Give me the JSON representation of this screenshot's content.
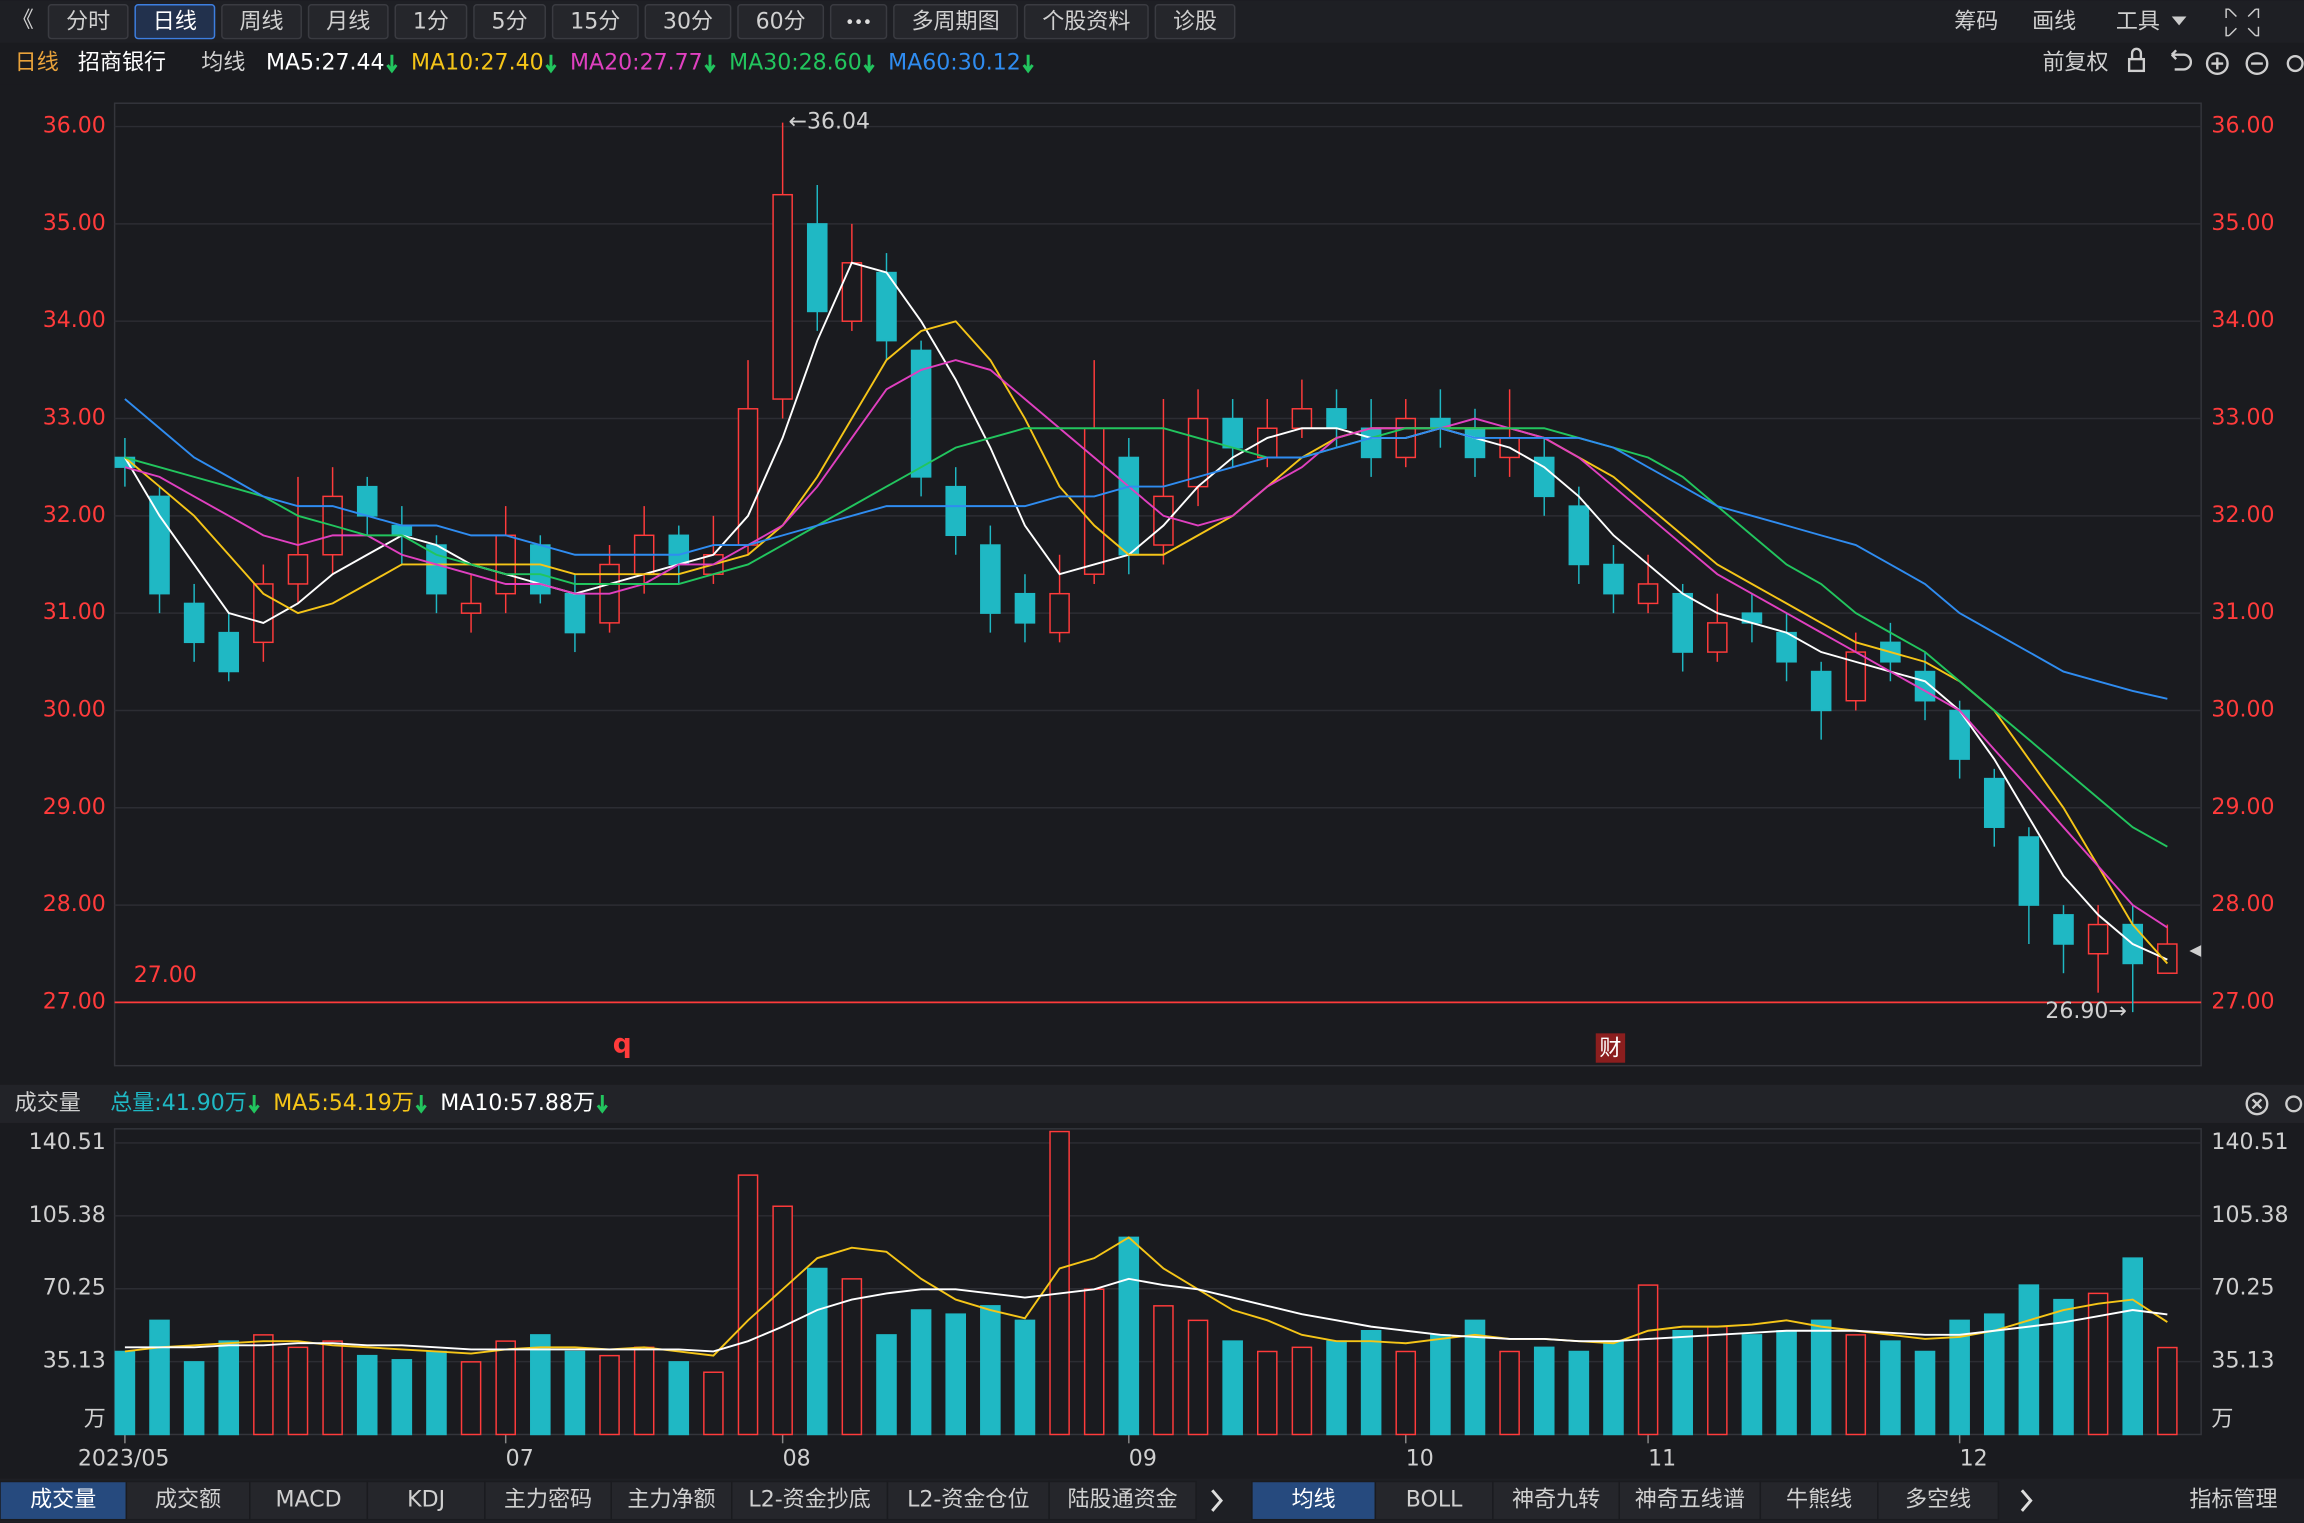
{
  "toolbar": {
    "nav": "《",
    "left": [
      "分时",
      "日线",
      "周线",
      "月线",
      "1分",
      "5分",
      "15分",
      "30分",
      "60分"
    ],
    "more": [
      "多周期图",
      "个股资料",
      "诊股"
    ],
    "right": [
      "筹码",
      "画线",
      "工具"
    ]
  },
  "header": {
    "period": "日线",
    "stock": "招商银行",
    "ma_title": "均线",
    "adjust": "前复权"
  },
  "markers": [
    "q",
    "财"
  ],
  "volume_header": {
    "title": "成交量",
    "total": "总量:41.90万"
  },
  "tabs_left": [
    "成交量",
    "成交额",
    "MACD",
    "KDJ",
    "主力密码",
    "主力净额",
    "L2-资金抄底",
    "L2-资金仓位",
    "陆股通资金"
  ],
  "tabs_right": [
    "均线",
    "BOLL",
    "神奇九转",
    "神奇五线谱",
    "牛熊线",
    "多空线"
  ],
  "tab_manage": "指标管理",
  "chart_data": [
    {
      "type": "candlestick",
      "categories": [
        "2023/05",
        null,
        null,
        null,
        null,
        null,
        null,
        null,
        null,
        null,
        null,
        "07",
        null,
        null,
        null,
        null,
        null,
        null,
        null,
        "08",
        null,
        null,
        null,
        null,
        null,
        null,
        null,
        null,
        null,
        "09",
        null,
        null,
        null,
        null,
        null,
        null,
        null,
        "10",
        null,
        null,
        null,
        null,
        null,
        null,
        "11",
        null,
        null,
        null,
        null,
        null,
        null,
        null,
        null,
        "12",
        null,
        null,
        null,
        null,
        null,
        null
      ],
      "open": [
        32.6,
        32.2,
        31.1,
        30.8,
        30.7,
        31.3,
        31.6,
        32.3,
        31.9,
        31.7,
        31.0,
        31.2,
        31.7,
        31.2,
        30.9,
        31.4,
        31.8,
        31.4,
        31.7,
        33.2,
        35.0,
        34.0,
        34.5,
        33.7,
        32.3,
        31.7,
        31.2,
        30.8,
        31.4,
        32.6,
        31.7,
        32.3,
        33.0,
        32.6,
        32.9,
        33.1,
        32.9,
        32.6,
        33.0,
        32.9,
        32.6,
        32.6,
        32.1,
        31.5,
        31.1,
        31.2,
        30.6,
        31.0,
        30.8,
        30.4,
        30.1,
        30.7,
        30.4,
        30.0,
        29.3,
        28.7,
        27.9,
        27.5,
        27.8,
        27.3
      ],
      "high": [
        32.8,
        32.3,
        31.3,
        31.0,
        31.5,
        32.4,
        32.5,
        32.4,
        32.1,
        31.8,
        31.4,
        32.1,
        31.8,
        31.4,
        31.7,
        32.1,
        31.9,
        32.0,
        33.6,
        36.04,
        35.4,
        35.0,
        34.7,
        33.8,
        32.5,
        31.9,
        31.4,
        31.6,
        33.6,
        32.8,
        33.2,
        33.3,
        33.2,
        33.2,
        33.4,
        33.3,
        33.2,
        33.2,
        33.3,
        33.1,
        33.3,
        32.8,
        32.3,
        31.7,
        31.6,
        31.3,
        31.2,
        31.2,
        31.0,
        30.5,
        30.8,
        30.9,
        30.6,
        30.1,
        29.4,
        28.8,
        28.0,
        28.0,
        28.0,
        27.8
      ],
      "low": [
        32.3,
        31.0,
        30.5,
        30.3,
        30.5,
        31.1,
        31.4,
        31.8,
        31.5,
        31.0,
        30.8,
        31.0,
        31.1,
        30.6,
        30.8,
        31.2,
        31.3,
        31.3,
        31.6,
        33.0,
        33.9,
        33.9,
        33.6,
        32.2,
        31.6,
        30.8,
        30.7,
        30.7,
        31.3,
        31.4,
        31.5,
        32.1,
        32.5,
        32.5,
        32.8,
        32.7,
        32.4,
        32.5,
        32.7,
        32.4,
        32.4,
        32.0,
        31.3,
        31.0,
        31.0,
        30.4,
        30.5,
        30.7,
        30.3,
        29.7,
        30.0,
        30.3,
        29.9,
        29.3,
        28.6,
        27.6,
        27.3,
        27.1,
        26.9,
        27.3
      ],
      "close": [
        32.5,
        31.2,
        30.7,
        30.4,
        31.3,
        31.6,
        32.2,
        32.0,
        31.8,
        31.2,
        31.1,
        31.8,
        31.2,
        30.8,
        31.5,
        31.8,
        31.5,
        31.6,
        33.1,
        35.3,
        34.1,
        34.6,
        33.8,
        32.4,
        31.8,
        31.0,
        30.9,
        31.2,
        32.9,
        31.6,
        32.2,
        33.0,
        32.7,
        32.9,
        33.1,
        32.9,
        32.6,
        33.0,
        32.9,
        32.6,
        32.8,
        32.2,
        31.5,
        31.2,
        31.3,
        30.6,
        30.9,
        30.9,
        30.5,
        30.0,
        30.6,
        30.5,
        30.1,
        29.5,
        28.8,
        28.0,
        27.6,
        27.8,
        27.4,
        27.6
      ],
      "up_color": "#ff3b3b",
      "down_color": "#1fb8c4",
      "series": [
        {
          "name": "MA5:27.44",
          "color": "#ffffff",
          "values": [
            32.6,
            32.0,
            31.5,
            31.0,
            30.9,
            31.1,
            31.4,
            31.6,
            31.8,
            31.7,
            31.5,
            31.4,
            31.3,
            31.2,
            31.3,
            31.4,
            31.5,
            31.6,
            32.0,
            32.8,
            33.8,
            34.6,
            34.5,
            34.0,
            33.4,
            32.7,
            31.9,
            31.4,
            31.5,
            31.6,
            31.9,
            32.3,
            32.6,
            32.8,
            32.9,
            32.9,
            32.8,
            32.8,
            32.9,
            32.8,
            32.7,
            32.5,
            32.2,
            31.8,
            31.5,
            31.2,
            31.0,
            30.9,
            30.8,
            30.6,
            30.5,
            30.4,
            30.3,
            30.0,
            29.5,
            28.9,
            28.3,
            27.9,
            27.6,
            27.44
          ]
        },
        {
          "name": "MA10:27.40",
          "color": "#f5c518",
          "values": [
            32.6,
            32.3,
            32.0,
            31.6,
            31.2,
            31.0,
            31.1,
            31.3,
            31.5,
            31.5,
            31.5,
            31.5,
            31.5,
            31.4,
            31.4,
            31.4,
            31.4,
            31.5,
            31.6,
            31.9,
            32.4,
            33.0,
            33.6,
            33.9,
            34.0,
            33.6,
            33.0,
            32.3,
            31.9,
            31.6,
            31.6,
            31.8,
            32.0,
            32.3,
            32.6,
            32.8,
            32.9,
            32.9,
            32.9,
            32.9,
            32.9,
            32.8,
            32.6,
            32.4,
            32.1,
            31.8,
            31.5,
            31.3,
            31.1,
            30.9,
            30.7,
            30.6,
            30.5,
            30.3,
            30.0,
            29.5,
            29.0,
            28.4,
            27.8,
            27.4
          ]
        },
        {
          "name": "MA20:27.77",
          "color": "#e040c0",
          "values": [
            32.5,
            32.4,
            32.2,
            32.0,
            31.8,
            31.7,
            31.8,
            31.8,
            31.6,
            31.5,
            31.4,
            31.3,
            31.3,
            31.2,
            31.2,
            31.3,
            31.5,
            31.5,
            31.7,
            31.9,
            32.3,
            32.8,
            33.3,
            33.5,
            33.6,
            33.5,
            33.2,
            32.9,
            32.6,
            32.3,
            32.0,
            31.9,
            32.0,
            32.3,
            32.5,
            32.8,
            32.9,
            32.9,
            32.9,
            33.0,
            32.9,
            32.8,
            32.6,
            32.3,
            32.0,
            31.7,
            31.4,
            31.2,
            31.0,
            30.8,
            30.6,
            30.4,
            30.2,
            30.0,
            29.6,
            29.2,
            28.8,
            28.4,
            28.0,
            27.77
          ]
        },
        {
          "name": "MA30:28.60",
          "color": "#22c55e",
          "values": [
            32.6,
            32.5,
            32.4,
            32.3,
            32.2,
            32.0,
            31.9,
            31.8,
            31.8,
            31.6,
            31.5,
            31.4,
            31.4,
            31.3,
            31.3,
            31.3,
            31.3,
            31.4,
            31.5,
            31.7,
            31.9,
            32.1,
            32.3,
            32.5,
            32.7,
            32.8,
            32.9,
            32.9,
            32.9,
            32.9,
            32.9,
            32.8,
            32.7,
            32.6,
            32.6,
            32.7,
            32.8,
            32.9,
            32.9,
            32.9,
            32.9,
            32.9,
            32.8,
            32.7,
            32.6,
            32.4,
            32.1,
            31.8,
            31.5,
            31.3,
            31.0,
            30.8,
            30.6,
            30.3,
            30.0,
            29.7,
            29.4,
            29.1,
            28.8,
            28.6
          ]
        },
        {
          "name": "MA60:30.12",
          "color": "#2f8cf0",
          "values": [
            33.2,
            32.9,
            32.6,
            32.4,
            32.2,
            32.1,
            32.1,
            32.0,
            31.9,
            31.9,
            31.8,
            31.8,
            31.7,
            31.6,
            31.6,
            31.6,
            31.6,
            31.7,
            31.7,
            31.8,
            31.9,
            32.0,
            32.1,
            32.1,
            32.1,
            32.1,
            32.1,
            32.2,
            32.2,
            32.3,
            32.3,
            32.4,
            32.5,
            32.6,
            32.6,
            32.7,
            32.8,
            32.8,
            32.9,
            32.8,
            32.8,
            32.8,
            32.8,
            32.7,
            32.5,
            32.3,
            32.1,
            32.0,
            31.9,
            31.8,
            31.7,
            31.5,
            31.3,
            31.0,
            30.8,
            30.6,
            30.4,
            30.3,
            30.2,
            30.12
          ]
        }
      ],
      "annotations": [
        {
          "index": 19,
          "value": 36.04,
          "label": "←36.04"
        },
        {
          "index": 58,
          "value": 26.9,
          "label": "26.90→"
        }
      ],
      "ref_line": {
        "value": 27,
        "label": "27.00",
        "color": "#ff3b3b"
      },
      "ylim": [
        26.35,
        36.24
      ],
      "yticks": [
        {
          "value": 27,
          "label": "27.00"
        },
        {
          "value": 28,
          "label": "28.00"
        },
        {
          "value": 29,
          "label": "29.00"
        },
        {
          "value": 30,
          "label": "30.00"
        },
        {
          "value": 31,
          "label": "31.00"
        },
        {
          "value": 32,
          "label": "32.00"
        },
        {
          "value": 33,
          "label": "33.00"
        },
        {
          "value": 34,
          "label": "34.00"
        },
        {
          "value": 35,
          "label": "35.00"
        },
        {
          "value": 36,
          "label": "36.00"
        }
      ],
      "grid": true
    },
    {
      "type": "bar",
      "unit": "万",
      "values": [
        40,
        55,
        35,
        45,
        48,
        42,
        45,
        38,
        36,
        40,
        35,
        45,
        48,
        40,
        38,
        42,
        35,
        30,
        125,
        110,
        80,
        75,
        48,
        60,
        58,
        62,
        55,
        146,
        70,
        95,
        62,
        55,
        45,
        40,
        42,
        45,
        50,
        40,
        48,
        55,
        40,
        42,
        40,
        45,
        72,
        50,
        52,
        48,
        50,
        55,
        48,
        45,
        40,
        55,
        58,
        72,
        65,
        68,
        85,
        41.9
      ],
      "series": [
        {
          "name": "MA5:54.19万",
          "color": "#f5c518",
          "values": [
            40,
            42,
            43,
            44,
            45,
            45,
            43,
            42,
            41,
            40,
            39,
            41,
            42,
            42,
            41,
            42,
            40,
            38,
            55,
            70,
            85,
            90,
            88,
            75,
            65,
            60,
            56,
            80,
            85,
            95,
            80,
            70,
            60,
            55,
            48,
            45,
            45,
            44,
            46,
            48,
            46,
            46,
            45,
            44,
            50,
            52,
            52,
            53,
            55,
            52,
            50,
            48,
            46,
            47,
            50,
            55,
            60,
            63,
            65,
            54.19
          ]
        },
        {
          "name": "MA10:57.88万",
          "color": "#ffffff",
          "values": [
            42,
            42,
            42,
            43,
            43,
            44,
            44,
            43,
            43,
            42,
            41,
            41,
            41,
            41,
            41,
            41,
            41,
            40,
            45,
            52,
            60,
            65,
            68,
            70,
            70,
            68,
            66,
            68,
            70,
            75,
            72,
            70,
            66,
            62,
            58,
            55,
            52,
            50,
            48,
            47,
            46,
            46,
            45,
            45,
            46,
            47,
            48,
            49,
            50,
            50,
            50,
            49,
            48,
            48,
            50,
            52,
            54,
            57,
            60,
            57.88
          ]
        }
      ],
      "ylim": [
        0,
        147.3
      ],
      "yticks": [
        35.13,
        70.25,
        105.38,
        140.51
      ],
      "grid": true
    }
  ]
}
